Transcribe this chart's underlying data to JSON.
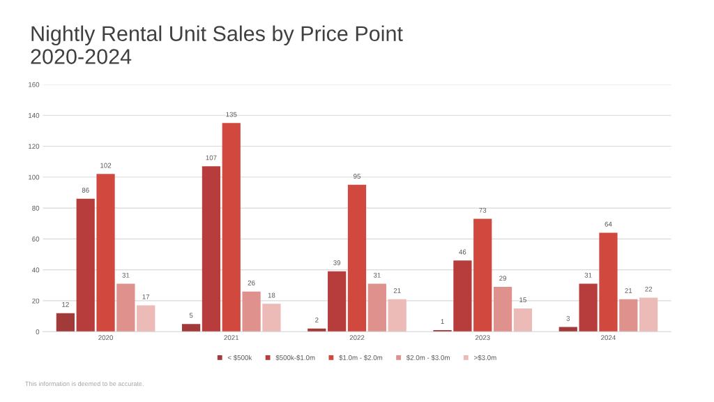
{
  "chart_data": {
    "type": "bar",
    "title": "Nightly Rental Unit Sales by Price Point\n2020-2024",
    "categories": [
      "2020",
      "2021",
      "2022",
      "2023",
      "2024"
    ],
    "series": [
      {
        "name": "< $500k",
        "color": "#a33a3a",
        "values": [
          12,
          5,
          2,
          1,
          3
        ]
      },
      {
        "name": "$500k-$1.0m",
        "color": "#b73c3c",
        "values": [
          86,
          107,
          39,
          46,
          31
        ]
      },
      {
        "name": "$1.0m - $2.0m",
        "color": "#d1483f",
        "values": [
          102,
          135,
          95,
          73,
          64
        ]
      },
      {
        "name": "$2.0m - $3.0m",
        "color": "#de918d",
        "values": [
          31,
          26,
          31,
          29,
          21
        ]
      },
      {
        "name": ">$3.0m",
        "color": "#ecbab7",
        "values": [
          17,
          18,
          21,
          15,
          22
        ]
      }
    ],
    "ylim": [
      0,
      160
    ],
    "yticks": [
      0,
      20,
      40,
      60,
      80,
      100,
      120,
      140,
      160
    ],
    "grid": "y",
    "legend": "bottom",
    "data_labels": true,
    "annotations": [
      "This information is deemed to be accurate."
    ]
  }
}
